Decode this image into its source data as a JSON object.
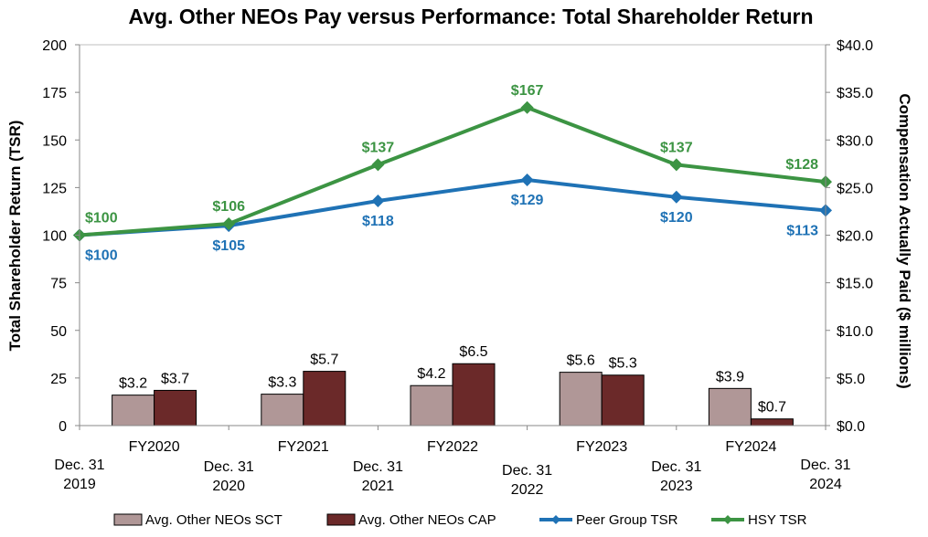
{
  "chart_data": {
    "type": "bar+line",
    "title": "Avg. Other NEOs Pay versus Performance: Total Shareholder Return",
    "y_left": {
      "label": "Total Shareholder Return (TSR)",
      "range": [
        0,
        200
      ],
      "ticks": [
        "0",
        "25",
        "50",
        "75",
        "100",
        "125",
        "150",
        "175",
        "200"
      ]
    },
    "y_right": {
      "label": "Compensation Actually Paid ($ millions)",
      "range": [
        0,
        40
      ],
      "ticks": [
        "$0.0",
        "$5.0",
        "$10.0",
        "$15.0",
        "$20.0",
        "$25.0",
        "$30.0",
        "$35.0",
        "$40.0"
      ]
    },
    "bar_categories": [
      "FY2020",
      "FY2021",
      "FY2022",
      "FY2023",
      "FY2024"
    ],
    "bar_series": [
      {
        "name": "Avg. Other NEOs SCT",
        "color": "#b09797",
        "values": [
          3.2,
          3.3,
          4.2,
          5.6,
          3.9
        ],
        "labels": [
          "$3.2",
          "$3.3",
          "$4.2",
          "$5.6",
          "$3.9"
        ]
      },
      {
        "name": "Avg. Other NEOs CAP",
        "color": "#6b2929",
        "values": [
          3.7,
          5.7,
          6.5,
          5.3,
          0.7
        ],
        "labels": [
          "$3.7",
          "$5.7",
          "$6.5",
          "$5.3",
          "$0.7"
        ]
      }
    ],
    "date_points": [
      {
        "line1": "Dec. 31",
        "line2": "2019"
      },
      {
        "line1": "Dec. 31",
        "line2": "2020"
      },
      {
        "line1": "Dec. 31",
        "line2": "2021"
      },
      {
        "line1": "Dec. 31",
        "line2": "2022"
      },
      {
        "line1": "Dec. 31",
        "line2": "2023"
      },
      {
        "line1": "Dec. 31",
        "line2": "2024"
      }
    ],
    "line_series": [
      {
        "name": "Peer Group TSR",
        "color": "#1f72b5",
        "values": [
          100,
          105,
          118,
          129,
          120,
          113
        ],
        "labels": [
          "$100",
          "$105",
          "$118",
          "$129",
          "$120",
          "$113"
        ]
      },
      {
        "name": "HSY TSR",
        "color": "#3c9443",
        "values": [
          100,
          106,
          137,
          167,
          137,
          128
        ],
        "labels": [
          "$100",
          "$106",
          "$137",
          "$167",
          "$137",
          "$128"
        ]
      }
    ],
    "legend_position": "bottom"
  }
}
